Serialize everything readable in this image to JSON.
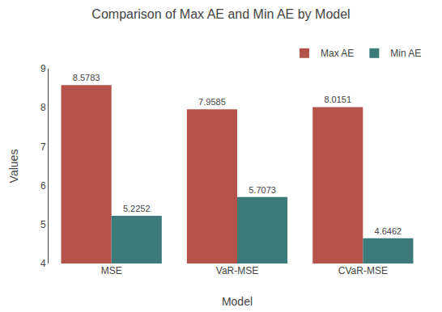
{
  "chart_data": {
    "type": "bar",
    "title": "Comparison of Max AE and Min AE by Model",
    "xlabel": "Model",
    "ylabel": "Values",
    "categories": [
      "MSE",
      "VaR-MSE",
      "CVaR-MSE"
    ],
    "series": [
      {
        "name": "Max AE",
        "color": "#b5534a",
        "values": [
          8.5783,
          7.9585,
          8.0151
        ]
      },
      {
        "name": "Min AE",
        "color": "#3d7a7a",
        "values": [
          5.2252,
          5.7073,
          4.6462
        ]
      }
    ],
    "ylim": [
      4,
      9
    ],
    "yticks": [
      4,
      5,
      6,
      7,
      8,
      9
    ],
    "grid": false,
    "legend": "upper right",
    "data_labels": true
  }
}
